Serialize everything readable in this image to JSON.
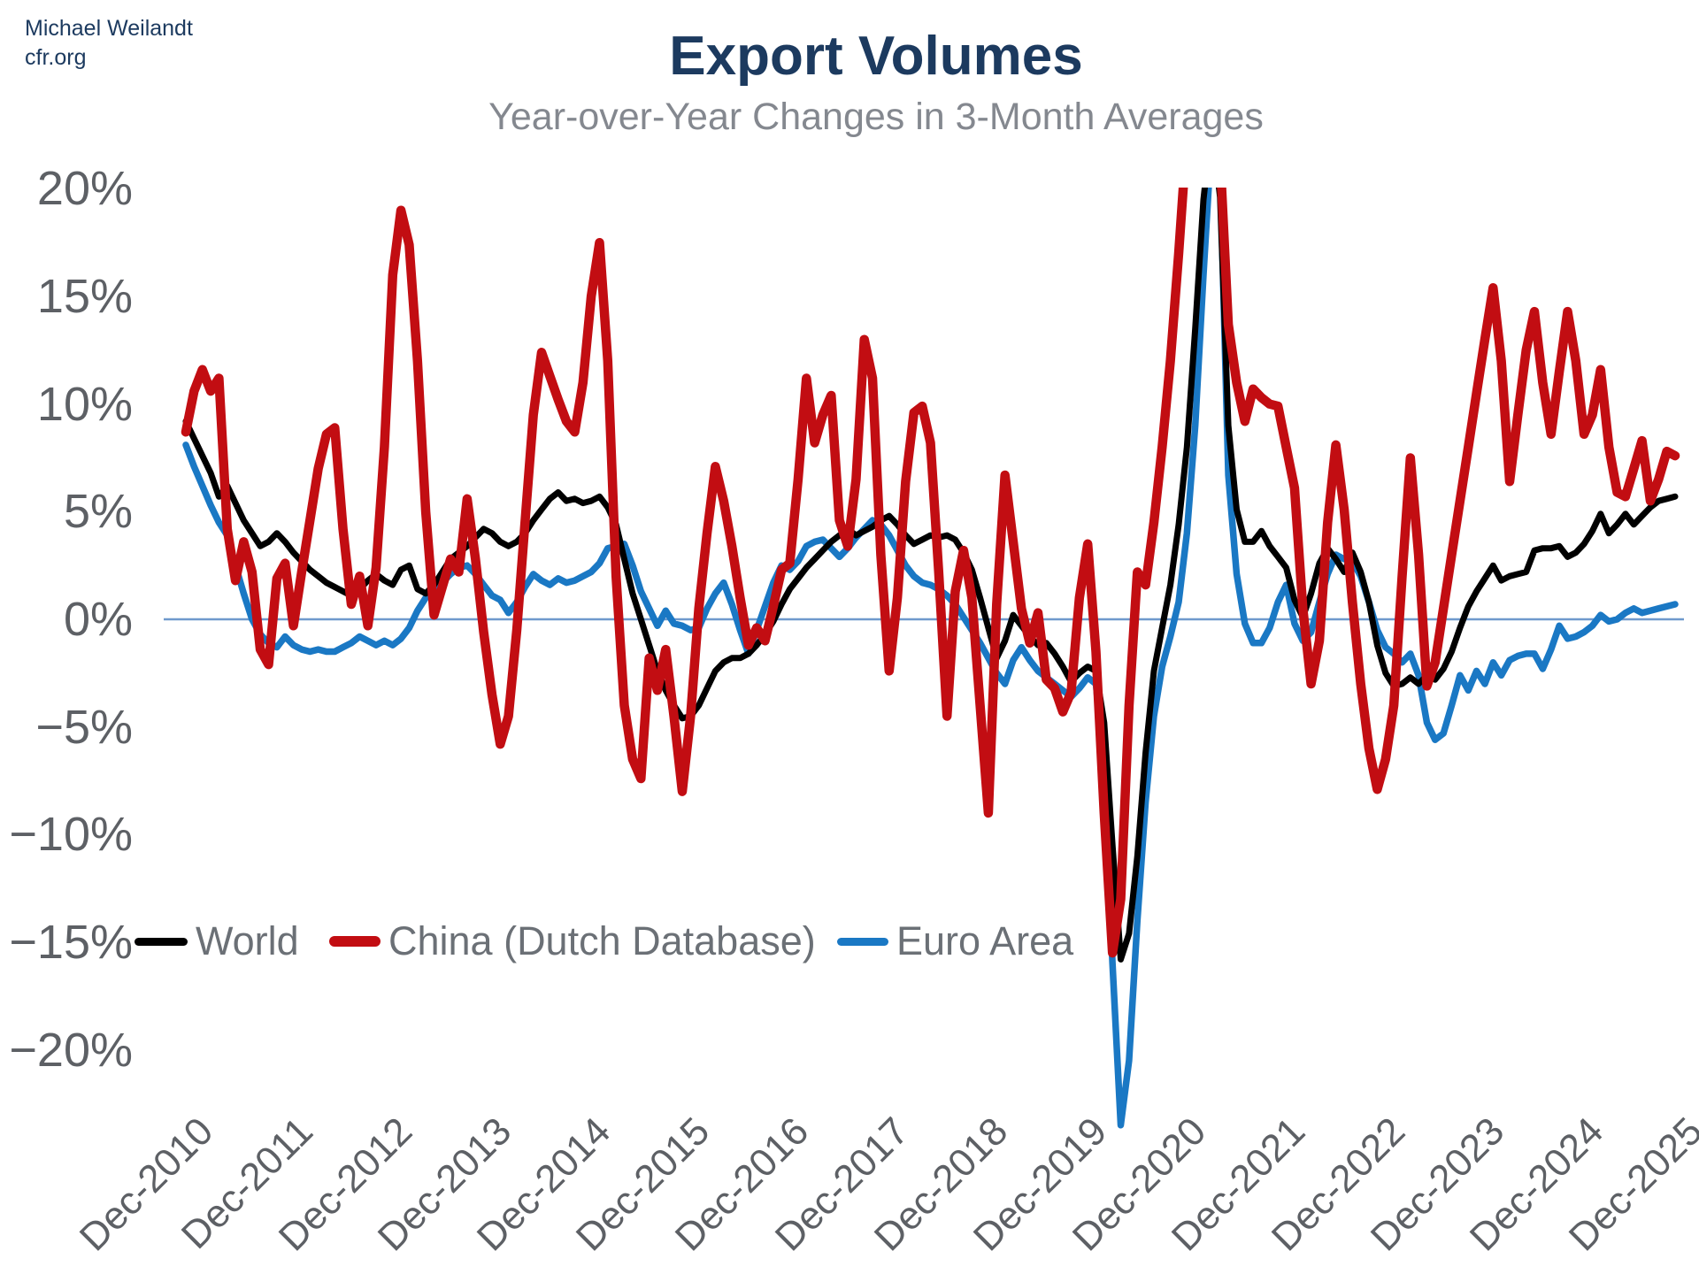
{
  "credit": {
    "line1": "Michael Weilandt",
    "line2": "cfr.org"
  },
  "header": {
    "title": "Export Volumes",
    "subtitle": "Year-over-Year Changes in 3-Month Averages"
  },
  "colors": {
    "title_navy": "#1c3a5f",
    "subtitle_gray": "#84888f",
    "tick_gray": "#5d6065",
    "legend_text_gray": "#6b7076",
    "zero_line_blue": "#6f99cd",
    "world_black": "#000000",
    "china_red": "#c20d12",
    "euro_blue": "#1a78c4"
  },
  "legend": [
    {
      "label": "World",
      "color": "#000000"
    },
    {
      "label": "China (Dutch Database)",
      "color": "#c20d12"
    },
    {
      "label": "Euro Area",
      "color": "#1a78c4"
    }
  ],
  "chart_data": {
    "type": "line",
    "title": "Export Volumes",
    "subtitle": "Year-over-Year Changes in 3-Month Averages",
    "x_frequency": "monthly",
    "x_start": "Dec-2010",
    "x_end": "Dec-2025",
    "x_tick_labels": [
      "Dec-2010",
      "Dec-2011",
      "Dec-2012",
      "Dec-2013",
      "Dec-2014",
      "Dec-2015",
      "Dec-2016",
      "Dec-2017",
      "Dec-2018",
      "Dec-2019",
      "Dec-2020",
      "Dec-2021",
      "Dec-2022",
      "Dec-2023",
      "Dec-2024",
      "Dec-2025"
    ],
    "y_ticks": [
      20,
      15,
      10,
      5,
      0,
      -5,
      -10,
      -15,
      -20
    ],
    "y_tick_labels": [
      "20%",
      "15%",
      "10%",
      "5%",
      "0%",
      "−5%",
      "−10%",
      "−15%",
      "−20%"
    ],
    "ylim": [
      -20,
      20
    ],
    "clip_top_percent": 20,
    "grid": "zero-line-only",
    "legend_position": "inside-lower-left",
    "series": [
      {
        "name": "World",
        "color": "#000000",
        "values": [
          9.2,
          8.4,
          7.6,
          6.8,
          5.7,
          6.2,
          5.4,
          4.6,
          4.0,
          3.4,
          3.6,
          4.0,
          3.6,
          3.1,
          2.7,
          2.3,
          2.0,
          1.7,
          1.5,
          1.3,
          1.1,
          1.4,
          1.8,
          2.1,
          1.8,
          1.6,
          2.3,
          2.5,
          1.4,
          1.2,
          1.6,
          2.2,
          2.8,
          3.1,
          3.4,
          3.8,
          4.2,
          4.0,
          3.6,
          3.4,
          3.6,
          4.0,
          4.6,
          5.1,
          5.6,
          5.9,
          5.5,
          5.6,
          5.4,
          5.5,
          5.7,
          5.2,
          4.4,
          2.8,
          1.2,
          0.0,
          -1.2,
          -2.4,
          -3.3,
          -4.0,
          -4.6,
          -4.5,
          -4.0,
          -3.2,
          -2.4,
          -2.0,
          -1.8,
          -1.8,
          -1.6,
          -1.2,
          -0.7,
          -0.1,
          0.7,
          1.4,
          1.9,
          2.4,
          2.8,
          3.2,
          3.6,
          3.9,
          4.2,
          3.9,
          4.1,
          4.3,
          4.6,
          4.8,
          4.4,
          3.9,
          3.5,
          3.7,
          3.9,
          3.8,
          3.9,
          3.7,
          3.1,
          2.3,
          1.0,
          -0.4,
          -1.8,
          -1.0,
          0.2,
          -0.3,
          -0.8,
          -1.2,
          -1.1,
          -1.6,
          -2.2,
          -2.9,
          -2.5,
          -2.2,
          -2.4,
          -4.8,
          -10.5,
          -15.8,
          -14.6,
          -11.0,
          -6.2,
          -2.4,
          -0.4,
          1.6,
          4.4,
          8.0,
          13.5,
          19.5,
          23.0,
          19.6,
          9.0,
          5.1,
          3.6,
          3.6,
          4.1,
          3.4,
          2.9,
          2.4,
          0.9,
          0.1,
          1.2,
          2.6,
          3.3,
          2.8,
          2.2,
          3.1,
          2.2,
          0.8,
          -1.2,
          -2.5,
          -3.1,
          -3.0,
          -2.7,
          -3.0,
          -2.6,
          -2.8,
          -2.3,
          -1.5,
          -0.4,
          0.6,
          1.3,
          1.9,
          2.5,
          1.8,
          2.0,
          2.1,
          2.2,
          3.2,
          3.3,
          3.3,
          3.4,
          2.9,
          3.1,
          3.5,
          4.1,
          4.9,
          4.0,
          4.4,
          4.9,
          4.4,
          4.8,
          5.2,
          5.5,
          5.6,
          5.7
        ]
      },
      {
        "name": "China (Dutch Database)",
        "color": "#c20d12",
        "values": [
          8.7,
          10.6,
          11.6,
          10.6,
          11.2,
          4.2,
          1.8,
          3.6,
          2.2,
          -1.4,
          -2.1,
          1.9,
          2.6,
          -0.3,
          2.2,
          4.6,
          7.0,
          8.6,
          8.9,
          4.2,
          0.7,
          2.0,
          -0.3,
          2.4,
          8.0,
          16.0,
          19.0,
          17.4,
          12.0,
          5.0,
          0.2,
          1.5,
          2.8,
          2.2,
          5.6,
          2.8,
          -0.6,
          -3.5,
          -5.8,
          -4.5,
          -0.5,
          4.5,
          9.5,
          12.4,
          11.3,
          10.2,
          9.2,
          8.7,
          11.0,
          15.0,
          17.5,
          12.0,
          2.0,
          -4.0,
          -6.5,
          -7.4,
          -1.8,
          -3.3,
          -1.4,
          -4.5,
          -8.0,
          -4.5,
          0.5,
          4.0,
          7.1,
          5.5,
          3.4,
          1.0,
          -1.2,
          -0.4,
          -1.0,
          0.6,
          2.3,
          2.6,
          6.5,
          11.2,
          8.2,
          9.5,
          10.4,
          4.6,
          3.4,
          6.5,
          13.0,
          11.2,
          3.0,
          -2.4,
          1.0,
          6.4,
          9.6,
          9.9,
          8.2,
          2.2,
          -4.5,
          1.3,
          3.2,
          1.0,
          -4.0,
          -9.0,
          0.7,
          6.7,
          3.6,
          0.5,
          -1.1,
          0.3,
          -2.8,
          -3.2,
          -4.3,
          -3.4,
          1.0,
          3.5,
          -1.5,
          -9.0,
          -15.5,
          -13.0,
          -4.0,
          2.2,
          1.6,
          4.5,
          8.0,
          12.0,
          17.0,
          22.5,
          24.0,
          25.0,
          24.0,
          21.5,
          13.7,
          11.0,
          9.2,
          10.7,
          10.3,
          10.0,
          9.9,
          8.0,
          6.1,
          0.5,
          -3.0,
          -1.0,
          4.5,
          8.1,
          5.1,
          0.8,
          -3.0,
          -6.0,
          -7.9,
          -6.5,
          -4.0,
          2.0,
          7.5,
          3.0,
          -3.1,
          -2.0,
          0.5,
          3.0,
          5.5,
          8.0,
          10.5,
          13.0,
          15.4,
          12.0,
          6.4,
          9.5,
          12.5,
          14.3,
          11.0,
          8.6,
          11.5,
          14.3,
          12.0,
          8.6,
          9.5,
          11.6,
          8.0,
          5.9,
          5.7,
          7.0,
          8.3,
          5.5,
          6.5,
          7.8,
          7.6
        ]
      },
      {
        "name": "Euro Area",
        "color": "#1a78c4",
        "values": [
          8.1,
          7.1,
          6.2,
          5.3,
          4.5,
          3.9,
          2.5,
          1.2,
          0.0,
          -0.7,
          -1.1,
          -1.3,
          -0.8,
          -1.2,
          -1.4,
          -1.5,
          -1.4,
          -1.5,
          -1.5,
          -1.3,
          -1.1,
          -0.8,
          -1.0,
          -1.2,
          -1.0,
          -1.2,
          -0.9,
          -0.4,
          0.4,
          1.0,
          1.4,
          1.7,
          2.1,
          2.4,
          2.5,
          2.1,
          1.6,
          1.1,
          0.9,
          0.3,
          0.8,
          1.5,
          2.1,
          1.8,
          1.6,
          1.9,
          1.7,
          1.8,
          2.0,
          2.2,
          2.6,
          3.3,
          3.4,
          3.5,
          2.5,
          1.3,
          0.5,
          -0.3,
          0.4,
          -0.2,
          -0.3,
          -0.5,
          -0.4,
          0.5,
          1.2,
          1.7,
          0.7,
          -0.5,
          -1.6,
          -0.5,
          0.6,
          1.7,
          2.5,
          2.3,
          2.7,
          3.4,
          3.6,
          3.7,
          3.3,
          2.9,
          3.3,
          3.8,
          4.2,
          4.6,
          4.4,
          3.9,
          3.2,
          2.5,
          2.0,
          1.7,
          1.6,
          1.4,
          1.1,
          0.7,
          0.1,
          -0.5,
          -1.1,
          -1.8,
          -2.5,
          -3.0,
          -1.9,
          -1.3,
          -1.9,
          -2.4,
          -2.7,
          -3.0,
          -3.3,
          -3.6,
          -3.2,
          -2.7,
          -3.0,
          -7.0,
          -16.0,
          -23.5,
          -20.5,
          -14.0,
          -8.5,
          -4.5,
          -2.2,
          -0.8,
          0.8,
          4.0,
          9.0,
          16.0,
          22.5,
          21.0,
          6.7,
          2.1,
          -0.2,
          -1.1,
          -1.1,
          -0.4,
          0.8,
          1.6,
          -0.2,
          -1.0,
          -0.6,
          0.8,
          2.1,
          3.0,
          2.8,
          2.7,
          2.0,
          0.8,
          -0.5,
          -1.3,
          -1.6,
          -2.0,
          -1.6,
          -2.6,
          -4.8,
          -5.6,
          -5.3,
          -4.0,
          -2.6,
          -3.3,
          -2.4,
          -3.0,
          -2.0,
          -2.6,
          -1.9,
          -1.7,
          -1.6,
          -1.6,
          -2.3,
          -1.4,
          -0.3,
          -0.9,
          -0.8,
          -0.6,
          -0.3,
          0.2,
          -0.1,
          0.0,
          0.3,
          0.5,
          0.3,
          0.4,
          0.5,
          0.6,
          0.7
        ]
      }
    ]
  }
}
